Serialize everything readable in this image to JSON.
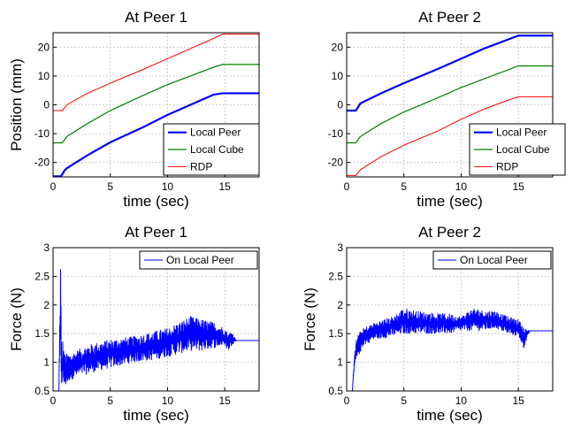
{
  "chart_data": [
    {
      "type": "line",
      "title": "At Peer 1",
      "xlabel": "time (sec)",
      "ylabel": "Position (mm)",
      "xlim": [
        0,
        18
      ],
      "ylim": [
        -25,
        25
      ],
      "xticks": [
        "0",
        "5",
        "10",
        "15"
      ],
      "yticks": [
        "-20",
        "-10",
        "0",
        "10",
        "20"
      ],
      "grid": true,
      "legend_position": "bottom-right",
      "series": [
        {
          "name": "Local Peer",
          "color": "#0000ff",
          "width": 2.2,
          "x": [
            0,
            0.7,
            1.0,
            1.2,
            3,
            5,
            8,
            10,
            12,
            14,
            14.8,
            18
          ],
          "y": [
            -24.8,
            -24.8,
            -22.8,
            -22,
            -17.5,
            -13,
            -7.5,
            -3.5,
            0,
            3.5,
            4.0,
            4.0
          ]
        },
        {
          "name": "Local Cube",
          "color": "#008000",
          "width": 1.2,
          "x": [
            0,
            0.8,
            1.2,
            3,
            5,
            8,
            10,
            12,
            14,
            14.8,
            18
          ],
          "y": [
            -13.2,
            -13.2,
            -11,
            -6.5,
            -2,
            3.5,
            7,
            10,
            13,
            14,
            14
          ]
        },
        {
          "name": "RDP",
          "color": "#ff0000",
          "width": 1.0,
          "x": [
            0,
            0.8,
            1.2,
            3,
            5,
            8,
            10,
            12,
            14,
            14.8,
            18
          ],
          "y": [
            -2,
            -2,
            0,
            4,
            7.5,
            12.5,
            16,
            19.5,
            23,
            24.5,
            24.5
          ]
        }
      ]
    },
    {
      "type": "line",
      "title": "At Peer 2",
      "xlabel": "time (sec)",
      "ylabel": "",
      "xlim": [
        0,
        18
      ],
      "ylim": [
        -25,
        25
      ],
      "xticks": [
        "0",
        "5",
        "10",
        "15"
      ],
      "yticks": [
        "-20",
        "-10",
        "0",
        "10",
        "20"
      ],
      "grid": true,
      "legend_position": "bottom-right",
      "series": [
        {
          "name": "Local Peer",
          "color": "#0000ff",
          "width": 2.2,
          "x": [
            0,
            0.8,
            1.2,
            3,
            5,
            8,
            10,
            12,
            14,
            15,
            18
          ],
          "y": [
            -2,
            -2,
            0.5,
            4,
            7.5,
            12.5,
            16,
            19.5,
            22.5,
            24,
            24
          ]
        },
        {
          "name": "Local Cube",
          "color": "#008000",
          "width": 1.2,
          "x": [
            0,
            0.8,
            1.2,
            3,
            5,
            8,
            10,
            12,
            14,
            15,
            18
          ],
          "y": [
            -13.2,
            -13.2,
            -11,
            -6.5,
            -2.5,
            2.5,
            6,
            9,
            12,
            13.5,
            13.5
          ]
        },
        {
          "name": "RDP",
          "color": "#ff0000",
          "width": 1.0,
          "x": [
            0,
            0.8,
            1.2,
            3,
            5,
            8,
            10,
            12,
            14,
            15,
            18
          ],
          "y": [
            -24.5,
            -24.5,
            -22.5,
            -18,
            -14,
            -9,
            -5,
            -1.5,
            1.5,
            2.8,
            2.8
          ]
        }
      ]
    },
    {
      "type": "line",
      "title": "At Peer 1",
      "xlabel": "time (sec)",
      "ylabel": "Force (N)",
      "xlim": [
        0,
        18
      ],
      "ylim": [
        0.5,
        3
      ],
      "xticks": [
        "0",
        "5",
        "10",
        "15"
      ],
      "yticks": [
        "0.5",
        "1",
        "1.5",
        "2",
        "2.5",
        "3"
      ],
      "grid": true,
      "legend_position": "top-right",
      "series": [
        {
          "name": "On Local Peer",
          "color": "#0000ff",
          "width": 1.0,
          "noisy": true,
          "envelope_x": [
            0.5,
            0.65,
            0.75,
            0.85,
            1.0,
            1.5,
            3,
            5,
            7,
            9,
            10,
            11,
            12,
            13,
            14,
            15,
            15.3,
            15.6,
            16,
            18
          ],
          "upper": [
            0.5,
            3.0,
            1.1,
            1.4,
            1.15,
            1.15,
            1.3,
            1.4,
            1.45,
            1.55,
            1.6,
            1.7,
            1.8,
            1.75,
            1.7,
            1.6,
            1.5,
            1.55,
            1.38,
            1.38
          ],
          "lower": [
            0.5,
            0.8,
            0.6,
            0.6,
            0.55,
            0.7,
            0.8,
            0.9,
            1.0,
            1.05,
            1.1,
            1.15,
            1.2,
            1.2,
            1.25,
            1.3,
            1.2,
            1.3,
            1.38,
            1.38
          ]
        }
      ]
    },
    {
      "type": "line",
      "title": "At Peer 2",
      "xlabel": "time (sec)",
      "ylabel": "Force (N)",
      "xlim": [
        0,
        18
      ],
      "ylim": [
        0.5,
        3
      ],
      "xticks": [
        "0",
        "5",
        "10",
        "15"
      ],
      "yticks": [
        "0.5",
        "1",
        "1.5",
        "2",
        "2.5",
        "3"
      ],
      "grid": true,
      "legend_position": "top-right",
      "series": [
        {
          "name": "On Local Peer",
          "color": "#0000ff",
          "width": 1.0,
          "noisy": true,
          "envelope_x": [
            0.5,
            0.7,
            1.0,
            1.5,
            2.5,
            4,
            5,
            6,
            8,
            9,
            10,
            11,
            12,
            13,
            14,
            15,
            15.5,
            16,
            18
          ],
          "upper": [
            0.5,
            1.3,
            1.5,
            1.6,
            1.7,
            1.8,
            1.95,
            1.9,
            1.85,
            1.85,
            1.8,
            1.95,
            1.9,
            1.9,
            1.8,
            1.75,
            1.6,
            1.55,
            1.55
          ],
          "lower": [
            0.5,
            0.9,
            1.1,
            1.3,
            1.4,
            1.45,
            1.5,
            1.5,
            1.5,
            1.5,
            1.55,
            1.55,
            1.55,
            1.6,
            1.5,
            1.45,
            1.25,
            1.55,
            1.55
          ]
        }
      ]
    }
  ]
}
